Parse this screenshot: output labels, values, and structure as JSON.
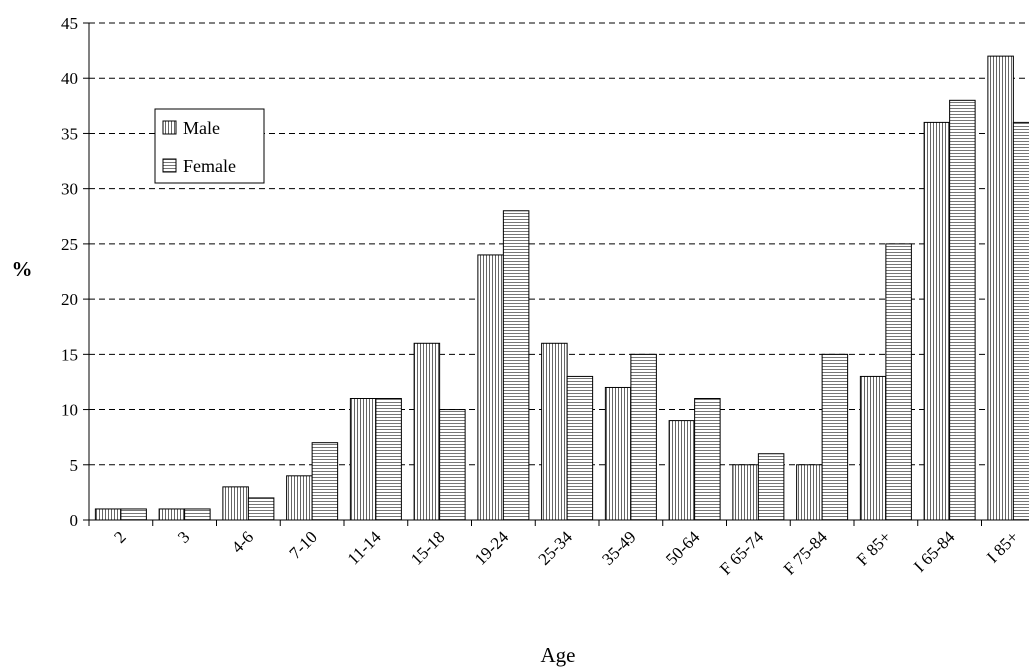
{
  "chart_data": {
    "type": "bar",
    "title": "",
    "xlabel": "Age",
    "ylabel": "%",
    "ylim": [
      0,
      45
    ],
    "yticks": [
      0,
      5,
      10,
      15,
      20,
      25,
      30,
      35,
      40,
      45
    ],
    "grid": "horizontal dashed",
    "legend_position": "top-left",
    "categories": [
      "2",
      "3",
      "4-6",
      "7-10",
      "11-14",
      "15-18",
      "19-24",
      "25-34",
      "35-49",
      "50-64",
      "F 65-74",
      "F 75-84",
      "F 85+",
      "I 65-84",
      "I 85+"
    ],
    "series": [
      {
        "name": "Male",
        "pattern": "vertical-hatch",
        "values": [
          1,
          1,
          3,
          4,
          11,
          16,
          24,
          16,
          12,
          9,
          5,
          5,
          13,
          36,
          42
        ]
      },
      {
        "name": "Female",
        "pattern": "horizontal-hatch",
        "values": [
          1,
          1,
          2,
          7,
          11,
          10,
          28,
          13,
          15,
          11,
          6,
          15,
          25,
          38,
          36
        ]
      }
    ]
  }
}
